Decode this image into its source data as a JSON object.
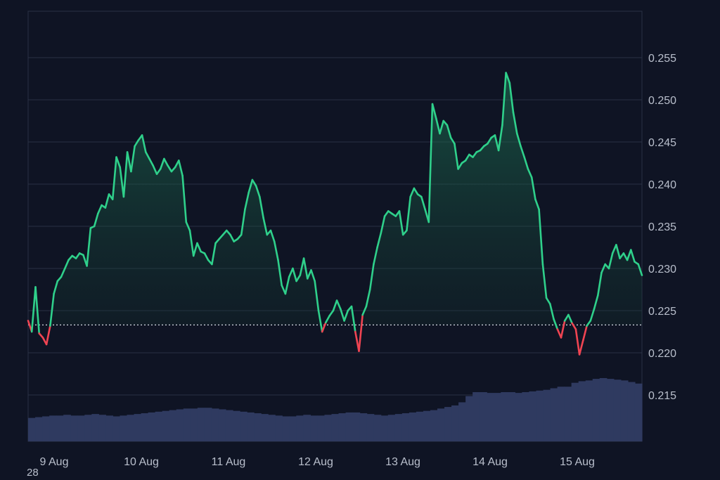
{
  "chart_data": {
    "type": "line",
    "x_ticks": [
      "9 Aug",
      "10 Aug",
      "11 Aug",
      "12 Aug",
      "13 Aug",
      "14 Aug",
      "15 Aug"
    ],
    "y_ticks": [
      "0.215",
      "0.220",
      "0.225",
      "0.230",
      "0.235",
      "0.240",
      "0.245",
      "0.250",
      "0.255"
    ],
    "ylim": [
      0.2095,
      0.2605
    ],
    "baseline": 0.2233,
    "grid": true,
    "colors": {
      "above": "#2fd08b",
      "below": "#f04452",
      "volume": "#2f3a60",
      "grid": "#2a3144"
    },
    "series": [
      {
        "values": [
          0.2238,
          0.2225,
          0.2278,
          0.2223,
          0.2218,
          0.221,
          0.2232,
          0.227,
          0.2285,
          0.229,
          0.23,
          0.231,
          0.2315,
          0.2312,
          0.2318,
          0.2316,
          0.2303,
          0.2348,
          0.235,
          0.2365,
          0.2375,
          0.2372,
          0.2388,
          0.2382,
          0.2432,
          0.242,
          0.2385,
          0.2438,
          0.2415,
          0.2445,
          0.2452,
          0.2458,
          0.2438,
          0.243,
          0.2422,
          0.2412,
          0.2418,
          0.243,
          0.2422,
          0.2415,
          0.242,
          0.2428,
          0.241,
          0.2355,
          0.2345,
          0.2315,
          0.233,
          0.232,
          0.2318,
          0.231,
          0.2305,
          0.233,
          0.2335,
          0.234,
          0.2345,
          0.234,
          0.2332,
          0.2335,
          0.234,
          0.237,
          0.239,
          0.2405,
          0.2398,
          0.2385,
          0.236,
          0.234,
          0.2345,
          0.2332,
          0.231,
          0.228,
          0.227,
          0.229,
          0.23,
          0.2285,
          0.2292,
          0.2312,
          0.2288,
          0.2298,
          0.2285,
          0.225,
          0.2225,
          0.2236,
          0.2244,
          0.225,
          0.2262,
          0.2252,
          0.2238,
          0.225,
          0.2255,
          0.2225,
          0.2202,
          0.2245,
          0.2255,
          0.2275,
          0.2305,
          0.2325,
          0.2342,
          0.2362,
          0.2368,
          0.2365,
          0.2362,
          0.2368,
          0.234,
          0.2345,
          0.2385,
          0.2395,
          0.2388,
          0.2385,
          0.237,
          0.2355,
          0.2495,
          0.2478,
          0.246,
          0.2475,
          0.247,
          0.2455,
          0.2448,
          0.2418,
          0.2425,
          0.2428,
          0.2435,
          0.2432,
          0.2438,
          0.244,
          0.2445,
          0.2448,
          0.2455,
          0.2458,
          0.244,
          0.247,
          0.2532,
          0.252,
          0.2485,
          0.246,
          0.2445,
          0.2432,
          0.2418,
          0.2408,
          0.2382,
          0.237,
          0.2305,
          0.2265,
          0.2258,
          0.224,
          0.2228,
          0.2218,
          0.2238,
          0.2245,
          0.2235,
          0.2228,
          0.2198,
          0.2215,
          0.2232,
          0.2238,
          0.2252,
          0.2268,
          0.2295,
          0.2305,
          0.23,
          0.2318,
          0.2328,
          0.2312,
          0.2318,
          0.231,
          0.2322,
          0.2308,
          0.2305,
          0.2292
        ]
      }
    ],
    "volume": {
      "values": [
        30,
        31,
        32,
        33,
        33,
        34,
        33,
        33,
        34,
        35,
        34,
        33,
        32,
        33,
        34,
        35,
        36,
        37,
        38,
        39,
        40,
        41,
        42,
        42,
        43,
        43,
        42,
        41,
        40,
        39,
        38,
        37,
        36,
        35,
        34,
        33,
        32,
        32,
        33,
        34,
        33,
        33,
        34,
        35,
        36,
        37,
        37,
        36,
        35,
        34,
        33,
        34,
        35,
        36,
        37,
        38,
        39,
        40,
        42,
        44,
        46,
        50,
        58,
        63,
        63,
        62,
        62,
        63,
        63,
        62,
        63,
        64,
        65,
        66,
        68,
        70,
        70,
        75,
        77,
        78,
        80,
        81,
        80,
        79,
        78,
        76,
        74
      ],
      "max": 90
    }
  },
  "corner_label": "28"
}
